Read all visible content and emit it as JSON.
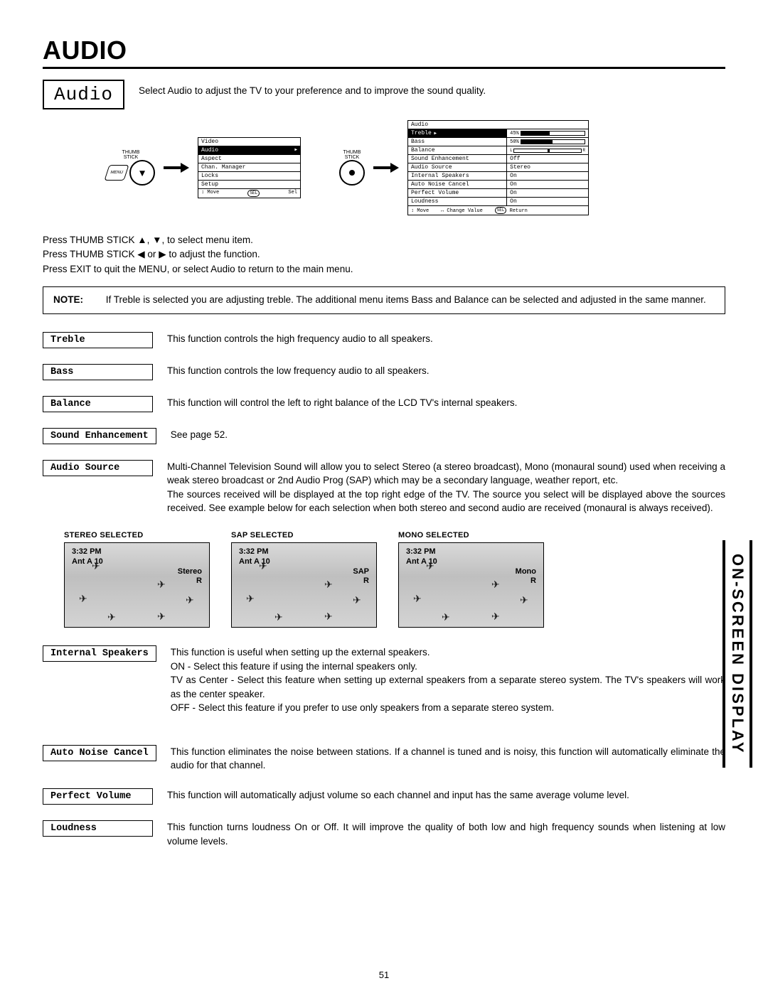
{
  "page_title": "AUDIO",
  "subtitle_box": "Audio",
  "intro": "Select Audio to adjust the TV to your preference and to improve the sound quality.",
  "thumb_label": "THUMB\nSTICK",
  "menu_btn": "MENU",
  "select_btn": "SELECT",
  "main_menu": {
    "items": [
      "Video",
      "Audio",
      "Aspect",
      "Chan. Manager",
      "Locks",
      "Setup"
    ],
    "highlight_index": 1,
    "footer": "↕ Move  SEL Sel"
  },
  "audio_menu": {
    "header": "Audio",
    "rows": [
      {
        "label": "Treble",
        "type": "bar",
        "text": "45%",
        "fill": 45,
        "hl": true
      },
      {
        "label": "Bass",
        "type": "bar",
        "text": "50%",
        "fill": 50
      },
      {
        "label": "Balance",
        "type": "lr"
      },
      {
        "label": "Sound Enhancement",
        "type": "val",
        "text": "Off"
      },
      {
        "label": "Audio Source",
        "type": "val",
        "text": "Stereo"
      },
      {
        "label": "Internal Speakers",
        "type": "val",
        "text": "On"
      },
      {
        "label": "Auto Noise Cancel",
        "type": "val",
        "text": "On"
      },
      {
        "label": "Perfect Volume",
        "type": "val",
        "text": "On"
      },
      {
        "label": "Loudness",
        "type": "val",
        "text": "On"
      }
    ],
    "footer": "↕ Move    ↔ Change Value    SEL Return"
  },
  "instructions": {
    "l1a": "Press THUMB STICK ",
    "l1b": ", ",
    "l1c": ", to select menu item.",
    "l2a": "Press THUMB STICK  ",
    "l2b": " or ",
    "l2c": " to adjust the function.",
    "l3": "Press EXIT to quit the MENU, or select Audio to return to the main menu."
  },
  "note": {
    "label": "NOTE:",
    "text": "If Treble is selected you are adjusting treble.  The additional menu items Bass and Balance can be selected and adjusted in the same manner."
  },
  "functions": {
    "treble": {
      "label": "Treble",
      "desc": "This function controls the high frequency audio to all speakers."
    },
    "bass": {
      "label": "Bass",
      "desc": "This function controls the low frequency audio to all speakers."
    },
    "balance": {
      "label": "Balance",
      "desc": "This function will control the left to right balance of the LCD TV's internal speakers."
    },
    "se": {
      "label": "Sound Enhancement",
      "desc": "See page 52."
    },
    "as": {
      "label": "Audio Source",
      "desc": "Multi-Channel Television Sound will allow you to select Stereo (a stereo broadcast), Mono (monaural sound) used when receiving a weak stereo broadcast or 2nd Audio Prog (SAP) which may be a secondary language, weather report, etc.\nThe sources received will be displayed at the top right edge of the TV.  The source you select will be displayed above the sources received.  See example below for each selection when both stereo and second audio are received (monaural is always received)."
    },
    "is": {
      "label": "Internal Speakers",
      "desc": "This function is useful when setting up the external speakers.\nON - Select this feature if using the internal speakers only.\nTV as Center - Select this feature when setting up external speakers from a separate stereo system.  The TV's speakers will work as the center speaker.\nOFF - Select this feature if you prefer to use only speakers from a separate stereo system."
    },
    "anc": {
      "label": "Auto Noise Cancel",
      "desc": "This function eliminates the noise between stations. If a channel is tuned and is noisy, this function will automatically eliminate the audio for that channel."
    },
    "pv": {
      "label": "Perfect Volume",
      "desc": "This function will automatically adjust volume so each channel  and input has the same average volume level."
    },
    "ld": {
      "label": "Loudness",
      "desc": "This function turns loudness On or Off.  It will improve the quality of both low and high frequency sounds when listening at low volume levels."
    }
  },
  "examples": {
    "time": "3:32 PM",
    "ch": "Ant A 10",
    "r": "R",
    "stereo": {
      "title": "STEREO SELECTED",
      "sel": "Stereo"
    },
    "sap": {
      "title": "SAP SELECTED",
      "sel": "SAP"
    },
    "mono": {
      "title": "MONO SELECTED",
      "sel": "Mono"
    }
  },
  "sidebar": "ON-SCREEN DISPLAY",
  "page_num": "51"
}
